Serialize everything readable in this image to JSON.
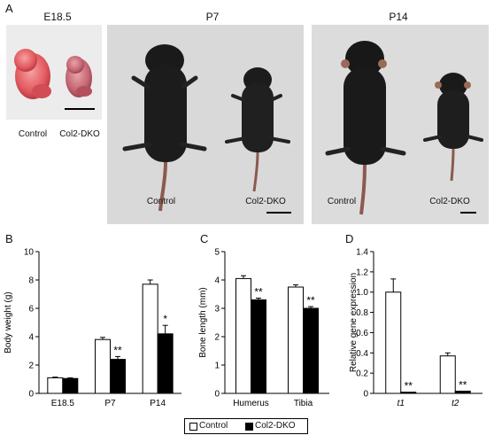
{
  "panel_a": {
    "letter": "A",
    "groups": [
      {
        "title": "E18.5",
        "left_label": "Control",
        "right_label": "Col2-DKO"
      },
      {
        "title": "P7",
        "left_label": "Control",
        "right_label": "Col2-DKO"
      },
      {
        "title": "P14",
        "left_label": "Control",
        "right_label": "Col2-DKO"
      }
    ]
  },
  "legend": {
    "control": "Control",
    "dko": "Col2-DKO"
  },
  "chart_data": [
    {
      "type": "bar",
      "panel": "B",
      "ylabel": "Body weight (g)",
      "ylim": [
        0,
        10
      ],
      "yticks": [
        0,
        2,
        4,
        6,
        8,
        10
      ],
      "categories": [
        "E18.5",
        "P7",
        "P14"
      ],
      "series": [
        {
          "name": "Control",
          "color": "#ffffff",
          "values": [
            1.1,
            3.8,
            7.7
          ],
          "errors": [
            0.05,
            0.15,
            0.3
          ]
        },
        {
          "name": "Col2-DKO",
          "color": "#000000",
          "values": [
            1.05,
            2.4,
            4.2
          ],
          "errors": [
            0.05,
            0.2,
            0.6
          ]
        }
      ],
      "annotations": [
        {
          "category": "P7",
          "text": "**"
        },
        {
          "category": "P14",
          "text": "*"
        }
      ]
    },
    {
      "type": "bar",
      "panel": "C",
      "ylabel": "Bone length (mm)",
      "ylim": [
        0,
        5
      ],
      "yticks": [
        0,
        1,
        2,
        3,
        4,
        5
      ],
      "categories": [
        "Humerus",
        "Tibia"
      ],
      "series": [
        {
          "name": "Control",
          "color": "#ffffff",
          "values": [
            4.05,
            3.75
          ],
          "errors": [
            0.1,
            0.08
          ]
        },
        {
          "name": "Col2-DKO",
          "color": "#000000",
          "values": [
            3.3,
            3.0
          ],
          "errors": [
            0.06,
            0.06
          ]
        }
      ],
      "annotations": [
        {
          "category": "Humerus",
          "text": "**"
        },
        {
          "category": "Tibia",
          "text": "**"
        }
      ]
    },
    {
      "type": "bar",
      "panel": "D",
      "ylabel": "Relative gene expression",
      "ylim": [
        0,
        1.4
      ],
      "yticks": [
        0,
        0.2,
        0.4,
        0.6,
        0.8,
        1.0,
        1.2,
        1.4
      ],
      "ytick_labels": [
        "0",
        "0.2",
        "0.4",
        "0.6",
        "0.8",
        "1.0",
        "1.2",
        "1.4"
      ],
      "categories": [
        "t1",
        "t2"
      ],
      "series": [
        {
          "name": "Control",
          "color": "#ffffff",
          "values": [
            1.0,
            0.37
          ],
          "errors": [
            0.13,
            0.03
          ]
        },
        {
          "name": "Col2-DKO",
          "color": "#000000",
          "values": [
            0.012,
            0.022
          ],
          "errors": [
            0.0,
            0.0
          ]
        }
      ],
      "annotations": [
        {
          "category": "t1",
          "text": "**"
        },
        {
          "category": "t2",
          "text": "**"
        }
      ]
    }
  ]
}
